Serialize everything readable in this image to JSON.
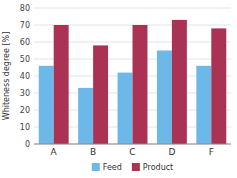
{
  "chart_data": {
    "type": "bar",
    "y_label": "Whiteness degree [%]",
    "categories": [
      "A",
      "B",
      "C",
      "D",
      "F"
    ],
    "series": [
      {
        "name": "Feed",
        "color": "#6cb8e8",
        "values": [
          46,
          33,
          42,
          55,
          46
        ]
      },
      {
        "name": "Product",
        "color": "#aa3355",
        "values": [
          70,
          58,
          70,
          73,
          68
        ]
      }
    ],
    "ylim": [
      0,
      80
    ],
    "yticks": [
      0,
      10,
      20,
      30,
      40,
      50,
      60,
      70,
      80
    ],
    "grid": true,
    "legend": "bottom"
  }
}
